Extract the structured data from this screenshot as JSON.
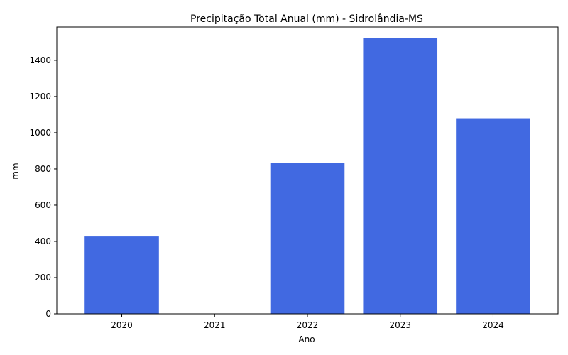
{
  "chart_data": {
    "type": "bar",
    "title": "Precipitação Total Anual (mm) - Sidrolândia-MS",
    "xlabel": "Ano",
    "ylabel": "mm",
    "categories": [
      "2020",
      "2021",
      "2022",
      "2023",
      "2024"
    ],
    "values": [
      427,
      0,
      832,
      1523,
      1080
    ],
    "ylim": [
      0,
      1584
    ],
    "yticks": [
      0,
      200,
      400,
      600,
      800,
      1000,
      1200,
      1400
    ],
    "bar_color": "#4169e1",
    "grid": false,
    "legend": "none"
  }
}
